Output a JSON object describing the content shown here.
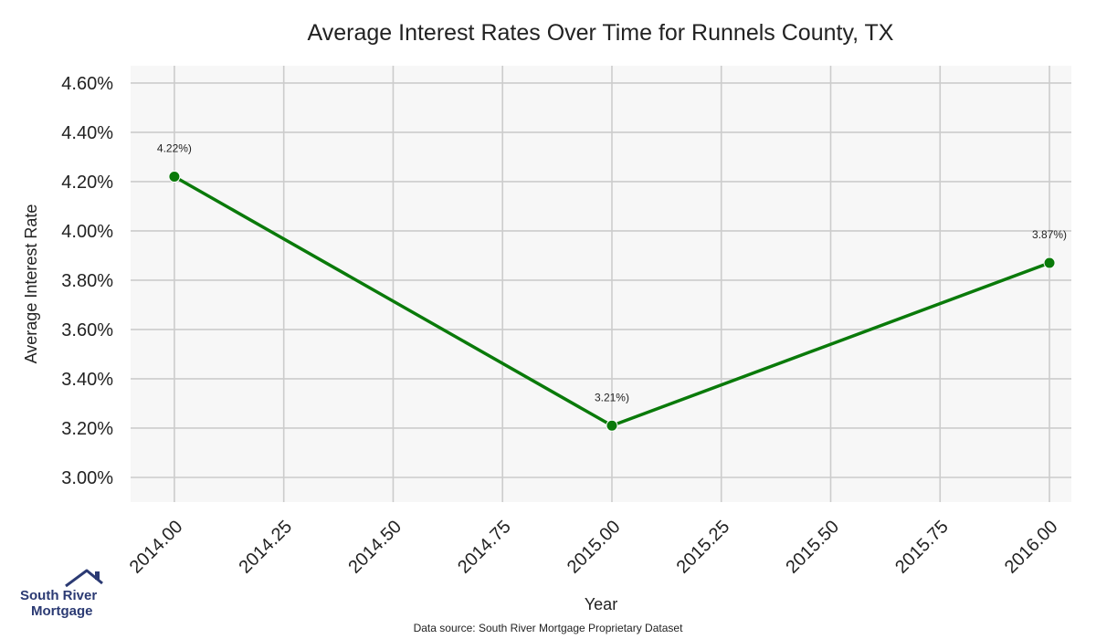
{
  "chart_data": {
    "type": "line",
    "title": "Average Interest Rates Over Time for Runnels County, TX",
    "xlabel": "Year",
    "ylabel": "Average Interest Rate",
    "x": [
      2014,
      2015,
      2016
    ],
    "series": [
      {
        "values": [
          4.22,
          3.21,
          3.87
        ],
        "point_labels": [
          "4.22%)",
          "3.21%)",
          "3.87%)"
        ]
      }
    ],
    "xlim": [
      2013.9,
      2016.05
    ],
    "ylim": [
      2.9,
      4.67
    ],
    "x_tick_labels": [
      "2014.00",
      "2014.25",
      "2014.50",
      "2014.75",
      "2015.00",
      "2015.25",
      "2015.50",
      "2015.75",
      "2016.00"
    ],
    "x_tick_values": [
      2014.0,
      2014.25,
      2014.5,
      2014.75,
      2015.0,
      2015.25,
      2015.5,
      2015.75,
      2016.0
    ],
    "y_tick_labels": [
      "3.00%",
      "3.20%",
      "3.40%",
      "3.60%",
      "3.80%",
      "4.00%",
      "4.20%",
      "4.40%",
      "4.60%"
    ],
    "y_tick_values": [
      3.0,
      3.2,
      3.4,
      3.6,
      3.8,
      4.0,
      4.2,
      4.4,
      4.6
    ],
    "grid": true,
    "line_color": "#0a7a0a",
    "plot_background": "#f7f7f7",
    "grid_color": "#cccccc"
  },
  "branding": {
    "logo_line1": "South River",
    "logo_line2": "Mortgage",
    "logo_color": "#2b3a73"
  },
  "footer": {
    "source_text": "Data source: South River Mortgage Proprietary Dataset"
  }
}
